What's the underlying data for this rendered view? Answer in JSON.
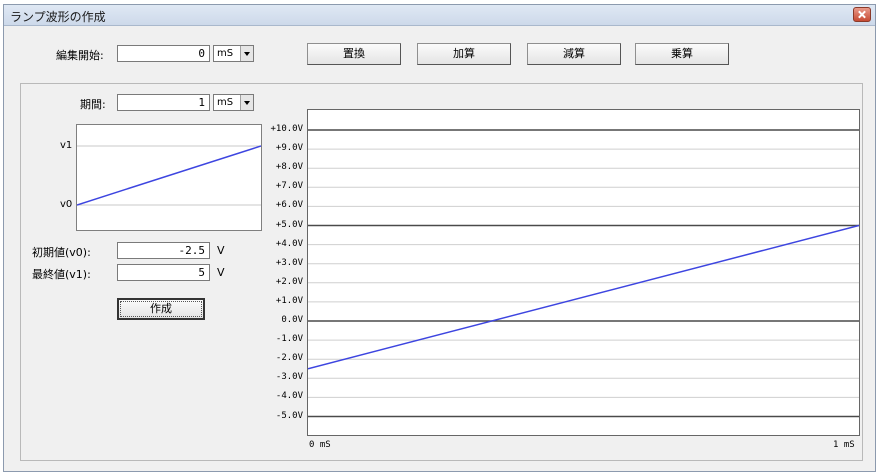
{
  "window": {
    "title": "ランプ波形の作成"
  },
  "edit_start": {
    "label": "編集開始:",
    "value": "0",
    "unit": "mS"
  },
  "toolbar": {
    "replace_label": "置換",
    "add_label": "加算",
    "subtract_label": "減算",
    "multiply_label": "乗算"
  },
  "period": {
    "label": "期間:",
    "value": "1",
    "unit": "mS"
  },
  "preview": {
    "v1_label": "v1",
    "v0_label": "v0"
  },
  "initial": {
    "label": "初期値(v0):",
    "value": "-2.5",
    "unit": "V"
  },
  "final": {
    "label": "最終値(v1):",
    "value": "5",
    "unit": "V"
  },
  "create_label": "作成",
  "chart_data": {
    "type": "line",
    "title": "",
    "xlabel": "",
    "ylabel": "",
    "x_tick_labels": [
      "0 mS",
      "1 mS"
    ],
    "y_tick_labels": [
      "+10.0V",
      "+9.0V",
      "+8.0V",
      "+7.0V",
      "+6.0V",
      "+5.0V",
      "+4.0V",
      "+3.0V",
      "+2.0V",
      "+1.0V",
      "0.0V",
      "-1.0V",
      "-2.0V",
      "-3.0V",
      "-4.0V",
      "-5.0V"
    ],
    "ylim": [
      -6,
      11
    ],
    "xlim": [
      0,
      1
    ],
    "grid": true,
    "series": [
      {
        "x": [
          0,
          1
        ],
        "y": [
          -2.5,
          5
        ],
        "color": "#3d45e0"
      }
    ]
  }
}
